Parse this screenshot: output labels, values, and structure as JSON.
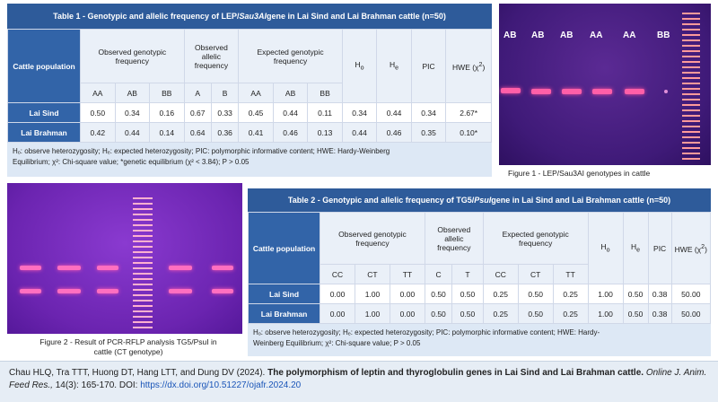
{
  "table1": {
    "title_pre": "Table 1 - Genotypic and allelic frequency of LEP/",
    "title_it": "Sau3AI",
    "title_post": " gene in Lai Sind and Lai Brahman cattle (n=50)",
    "pop_header": "Cattle population",
    "obs_geno_header": "Observed genotypic frequency",
    "obs_allelic_header": "Observed allelic frequency",
    "exp_geno_header": "Expected genotypic frequency",
    "ho": "H",
    "ho_sub": "o",
    "he": "H",
    "he_sub": "e",
    "pic": "PIC",
    "hwe": "HWE (χ",
    "hwe_sup": "2",
    "hwe_close": ")",
    "subheaders": [
      "AA",
      "AB",
      "BB",
      "A",
      "B",
      "AA",
      "AB",
      "BB"
    ],
    "rows": [
      {
        "pop": "Lai Sind",
        "values": [
          "0.50",
          "0.34",
          "0.16",
          "0.67",
          "0.33",
          "0.45",
          "0.44",
          "0.11",
          "0.34",
          "0.44",
          "0.34",
          "2.67*"
        ]
      },
      {
        "pop": "Lai Brahman",
        "values": [
          "0.42",
          "0.44",
          "0.14",
          "0.64",
          "0.36",
          "0.41",
          "0.46",
          "0.13",
          "0.44",
          "0.46",
          "0.35",
          "0.10*"
        ]
      }
    ],
    "footnote_line1": "Hₒ: observe heterozygosity; Hₑ: expected heterozygosity; PIC: polymorphic informative content; HWE: Hardy-Weinberg",
    "footnote_line2": "Equilibrium; χ²: Chi-square value; *genetic equilibrium (χ² < 3.84); P > 0.05"
  },
  "figure1": {
    "caption": "Figure 1 - LEP/Sau3AI genotypes in cattle",
    "lane_labels": [
      "AB",
      "AB",
      "AB",
      "AA",
      "AA",
      "BB"
    ]
  },
  "figure2": {
    "caption_line1": "Figure 2 - Result of PCR-RFLP analysis TG5/PsuI  in",
    "caption_line2": "cattle (CT genotype)"
  },
  "table2": {
    "title_pre": "Table 2 - Genotypic and allelic frequency of TG5/",
    "title_it": "PsuI",
    "title_post": " gene in Lai Sind and Lai Brahman cattle (n=50)",
    "pop_header": "Cattle population",
    "obs_geno_header": "Observed genotypic frequency",
    "obs_allelic_header": "Observed allelic frequency",
    "exp_geno_header": "Expected genotypic frequency",
    "ho": "H",
    "ho_sub": "o",
    "he": "H",
    "he_sub": "e",
    "pic": "PIC",
    "hwe": "HWE (χ",
    "hwe_sup": "2",
    "hwe_close": ")",
    "subheaders": [
      "CC",
      "CT",
      "TT",
      "C",
      "T",
      "CC",
      "CT",
      "TT"
    ],
    "rows": [
      {
        "pop": "Lai Sind",
        "values": [
          "0.00",
          "1.00",
          "0.00",
          "0.50",
          "0.50",
          "0.25",
          "0.50",
          "0.25",
          "1.00",
          "0.50",
          "0.38",
          "50.00"
        ]
      },
      {
        "pop": "Lai Brahman",
        "values": [
          "0.00",
          "1.00",
          "0.00",
          "0.50",
          "0.50",
          "0.25",
          "0.50",
          "0.25",
          "1.00",
          "0.50",
          "0.38",
          "50.00"
        ]
      }
    ],
    "footnote_line1": "Hₒ: observe heterozygosity; Hₑ: expected heterozygosity; PIC: polymorphic informative content; HWE: Hardy-",
    "footnote_line2": "Weinberg Equilibrium; χ²: Chi-square value; P > 0.05"
  },
  "citation": {
    "authors": "Chau HLQ, Tra TTT, Huong DT, Hang LTT, and Dung DV (2024). ",
    "title": "The polymorphism of leptin and thyroglobulin genes in Lai Sind and Lai Brahman cattle.",
    "journal": " Online J. Anim. Feed Res.,",
    "volume": " 14(3): 165-170. DOI: ",
    "doi": "https://dx.doi.org/10.51227/ojafr.2024.20"
  }
}
